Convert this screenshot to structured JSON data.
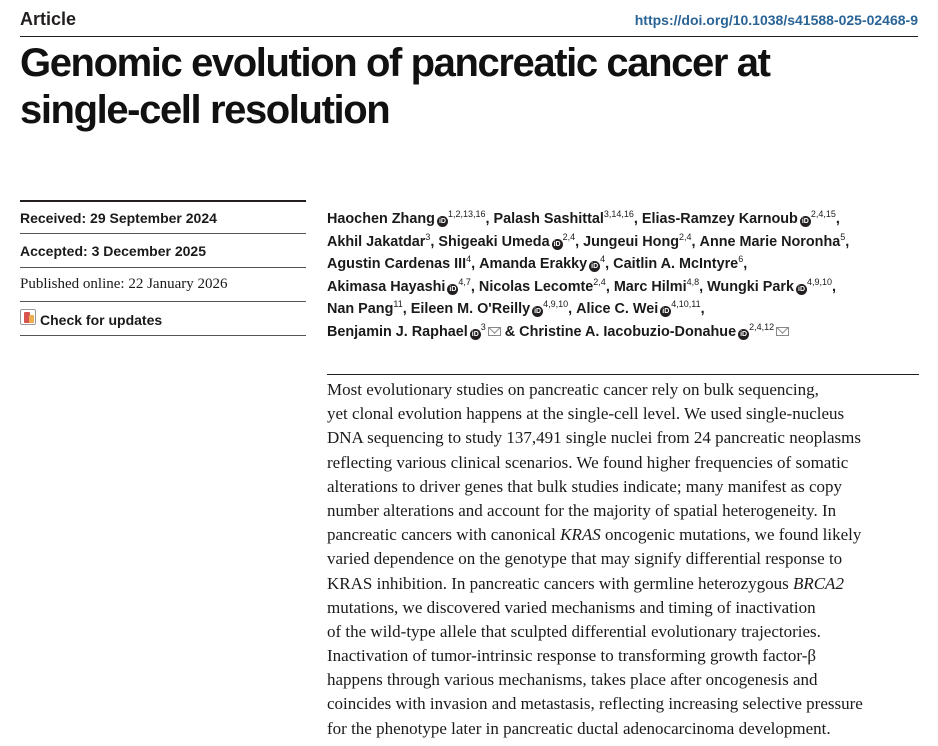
{
  "header": {
    "label": "Article",
    "doi": "https://doi.org/10.1038/s41588-025-02468-9"
  },
  "title": {
    "line1": "Genomic evolution of pancreatic cancer at",
    "line2": "single-cell resolution"
  },
  "meta": {
    "received": "Received: 29 September 2024",
    "accepted": "Accepted: 3 December 2025",
    "published": "Published online: 22 January 2026",
    "check_updates": "Check for updates"
  },
  "authors": [
    {
      "name": "Haochen Zhang",
      "aff": "1,2,13,16",
      "orcid": true,
      "orcid_after_aff": false,
      "sep": ", "
    },
    {
      "name": "Palash Sashittal",
      "aff": "3,14,16",
      "orcid": false,
      "sep": ", "
    },
    {
      "name": "Elias-Ramzey Karnoub",
      "aff": "2,4,15",
      "orcid": true,
      "orcid_after_aff": false,
      "sep": ","
    },
    {
      "name": "Akhil Jakatdar",
      "aff": "3",
      "orcid": false,
      "sep": ", "
    },
    {
      "name": "Shigeaki Umeda",
      "aff": "2,4",
      "orcid": true,
      "orcid_after_aff": false,
      "sep": ", "
    },
    {
      "name": "Jungeui Hong",
      "aff": "2,4",
      "orcid": false,
      "sep": ", "
    },
    {
      "name": "Anne Marie Noronha",
      "aff": "5",
      "orcid": false,
      "sep": ","
    },
    {
      "name": "Agustin Cardenas III",
      "aff": "4",
      "orcid": false,
      "sep": ", "
    },
    {
      "name": "Amanda Erakky",
      "aff": "4",
      "orcid": true,
      "orcid_after_aff": false,
      "sep": ", "
    },
    {
      "name": "Caitlin A. McIntyre",
      "aff": "6",
      "orcid": false,
      "sep": ","
    },
    {
      "name": "Akimasa Hayashi",
      "aff": "4,7",
      "orcid": true,
      "orcid_after_aff": false,
      "sep": ", "
    },
    {
      "name": "Nicolas Lecomte",
      "aff": "2,4",
      "orcid": false,
      "sep": ", "
    },
    {
      "name": "Marc Hilmi",
      "aff": "4,8",
      "orcid": false,
      "sep": ", "
    },
    {
      "name": "Wungki Park",
      "aff": "4,9,10",
      "orcid": true,
      "orcid_after_aff": false,
      "sep": ","
    },
    {
      "name": "Nan Pang",
      "aff": "11",
      "orcid": false,
      "sep": ", "
    },
    {
      "name": "Eileen M. O'Reilly",
      "aff": "4,9,10",
      "orcid": true,
      "orcid_after_aff": false,
      "sep": ", "
    },
    {
      "name": "Alice C. Wei",
      "aff": "4,10,11",
      "orcid": true,
      "orcid_after_aff": false,
      "sep": ","
    },
    {
      "name": "Benjamin J. Raphael",
      "aff": "3",
      "orcid": true,
      "orcid_after_aff": false,
      "mail": true,
      "sep": " & "
    },
    {
      "name": "Christine A. Iacobuzio-Donahue",
      "aff": "2,4,12",
      "orcid": true,
      "orcid_after_aff": false,
      "mail": true,
      "sep": ""
    }
  ],
  "abstract_lines": [
    "Most evolutionary studies on pancreatic cancer rely on bulk sequencing,",
    "yet clonal evolution happens at the single-cell level. We used single-nucleus",
    "DNA sequencing to study 137,491 single nuclei from 24 pancreatic neoplasms",
    "reflecting various clinical scenarios. We found higher frequencies of somatic",
    "alterations to driver genes that bulk studies indicate; many manifest as copy",
    "number alterations and account for the majority of spatial heterogeneity. In",
    "pancreatic cancers with canonical |KRAS| oncogenic mutations, we found likely",
    "varied dependence on the genotype that may signify differential response to",
    "KRAS inhibition. In pancreatic cancers with germline heterozygous |BRCA2|",
    "mutations, we discovered varied mechanisms and timing of inactivation",
    "of the wild-type allele that sculpted differential evolutionary trajectories.",
    "Inactivation of tumor-intrinsic response to transforming growth factor-β",
    "happens through various mechanisms, takes place after oncogenesis and",
    "coincides with invasion and metastasis, reflecting increasing selective pressure",
    "for the phenotype later in pancreatic ductal adenocarcinoma development."
  ]
}
